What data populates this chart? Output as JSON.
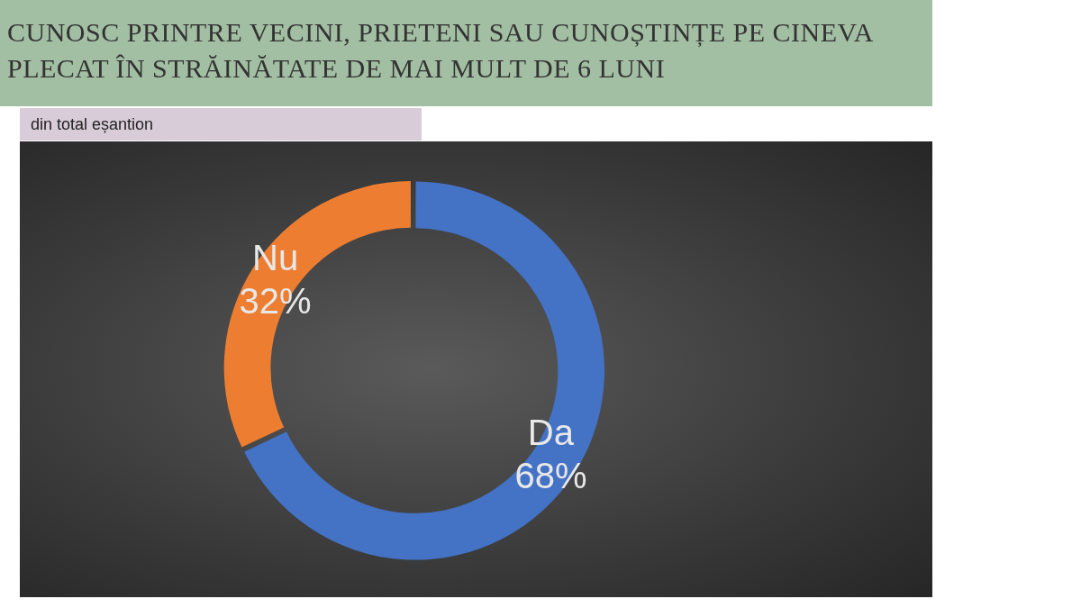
{
  "chart_data": {
    "type": "donut",
    "title": "CUNOSC PRINTRE VECINI, PRIETENI SAU CUNOȘTINȚE PE CINEVA PLECAT ÎN STRĂINĂTATE DE MAI MULT DE 6 LUNI",
    "subtitle": "din total eșantion",
    "categories": [
      "Da",
      "Nu"
    ],
    "values": [
      68,
      32
    ],
    "value_labels": [
      "68%",
      "32%"
    ],
    "colors": [
      "#4472c4",
      "#ed7d31"
    ],
    "legend": false
  }
}
